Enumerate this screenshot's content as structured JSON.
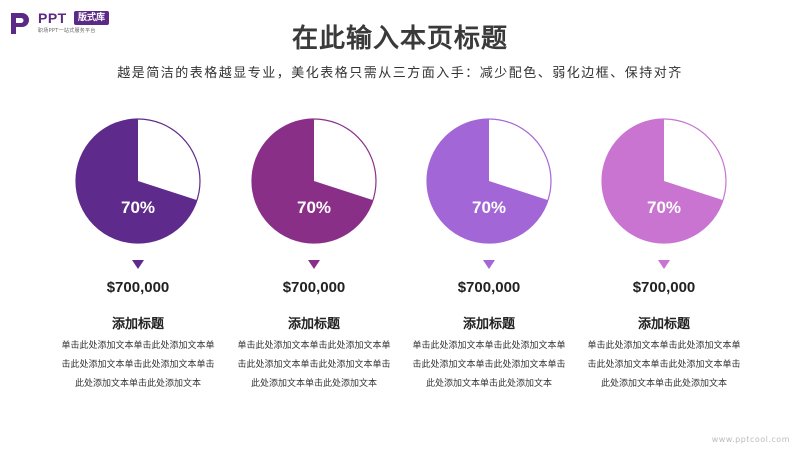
{
  "logo": {
    "name": "PPT",
    "badge": "版式库",
    "tagline": "职场PPT一站式服务平台",
    "brand_color": "#5b2a86"
  },
  "header": {
    "title": "在此输入本页标题",
    "subtitle": "越是简洁的表格越显专业，美化表格只需从三方面入手：减少配色、弱化边框、保持对齐"
  },
  "cards": [
    {
      "percent": 70,
      "percent_label": "70%",
      "color": "#5e2a8c",
      "amount": "$700,000",
      "title": "添加标题",
      "body": "单击此处添加文本单击此处添加文本单击此处添加文本单击此处添加文本单击此处添加文本单击此处添加文本"
    },
    {
      "percent": 70,
      "percent_label": "70%",
      "color": "#8a2f88",
      "amount": "$700,000",
      "title": "添加标题",
      "body": "单击此处添加文本单击此处添加文本单击此处添加文本单击此处添加文本单击此处添加文本单击此处添加文本"
    },
    {
      "percent": 70,
      "percent_label": "70%",
      "color": "#a366d6",
      "amount": "$700,000",
      "title": "添加标题",
      "body": "单击此处添加文本单击此处添加文本单击此处添加文本单击此处添加文本单击此处添加文本单击此处添加文本"
    },
    {
      "percent": 70,
      "percent_label": "70%",
      "color": "#c874d0",
      "amount": "$700,000",
      "title": "添加标题",
      "body": "单击此处添加文本单击此处添加文本单击此处添加文本单击此处添加文本单击此处添加文本单击此处添加文本"
    }
  ],
  "watermark": "www.pptcool.com"
}
